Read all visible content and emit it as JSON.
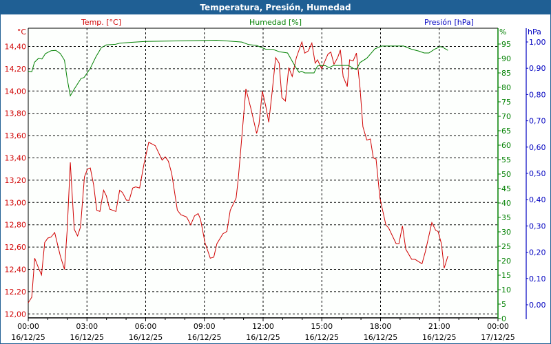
{
  "window": {
    "title": "Temperatura, Presión, Humedad"
  },
  "chart_data": {
    "type": "line",
    "title": "Temperatura, Presión, Humedad",
    "x_unit": "hours since 16/12/25 00:00",
    "xlim": [
      0,
      24
    ],
    "x_ticks": [
      {
        "time": "00:00",
        "date": "16/12/25"
      },
      {
        "time": "03:00",
        "date": "16/12/25"
      },
      {
        "time": "06:00",
        "date": "16/12/25"
      },
      {
        "time": "09:00",
        "date": "16/12/25"
      },
      {
        "time": "12:00",
        "date": "16/12/25"
      },
      {
        "time": "15:00",
        "date": "16/12/25"
      },
      {
        "time": "18:00",
        "date": "16/12/25"
      },
      {
        "time": "21:00",
        "date": "16/12/25"
      },
      {
        "time": "00:00",
        "date": "17/12/25"
      }
    ],
    "grid": true,
    "axes": {
      "temp": {
        "legend": "Temp. [°C]",
        "unit": "°C",
        "range": [
          12.0,
          14.4
        ],
        "ticks": [
          "12,00",
          "12,20",
          "12,40",
          "12,60",
          "12,80",
          "13,00",
          "13,20",
          "13,40",
          "13,60",
          "13,80",
          "14,00",
          "14,20",
          "14,40"
        ],
        "color": "#d00000",
        "side": "left"
      },
      "hum": {
        "legend": "Humedad [%]",
        "unit": "%",
        "range": [
          0,
          95
        ],
        "ticks": [
          "0",
          "5",
          "10",
          "15",
          "20",
          "25",
          "30",
          "35",
          "40",
          "45",
          "50",
          "55",
          "60",
          "65",
          "70",
          "75",
          "80",
          "85",
          "90",
          "95"
        ],
        "color": "#008000",
        "side": "right"
      },
      "pres": {
        "legend": "Presión [hPa]",
        "unit": "hPa",
        "range": [
          0,
          1
        ],
        "ticks": [
          "0,00",
          "0,10",
          "0,20",
          "0,30",
          "0,40",
          "0,50",
          "0,60",
          "0,70",
          "0,80",
          "0,90",
          "1,00"
        ],
        "color": "#0000c0",
        "side": "right"
      }
    },
    "series": [
      {
        "name": "Temp. [°C]",
        "axis": "temp",
        "color": "#d00000",
        "x": [
          0,
          0.18,
          0.33,
          0.53,
          0.68,
          0.84,
          1.0,
          1.17,
          1.35,
          1.64,
          1.85,
          1.99,
          2.15,
          2.25,
          2.35,
          2.52,
          2.67,
          2.87,
          3.03,
          3.17,
          3.34,
          3.5,
          3.66,
          3.85,
          3.99,
          4.16,
          4.48,
          4.67,
          4.81,
          5.02,
          5.16,
          5.34,
          5.49,
          5.69,
          5.92,
          6.16,
          6.49,
          6.84,
          7.0,
          7.16,
          7.33,
          7.62,
          7.8,
          8.09,
          8.3,
          8.5,
          8.68,
          8.8,
          9.03,
          9.3,
          9.48,
          9.64,
          9.95,
          10.15,
          10.32,
          10.62,
          10.73,
          10.91,
          11.03,
          11.12,
          11.38,
          11.67,
          11.79,
          11.96,
          12.14,
          12.29,
          12.46,
          12.64,
          12.82,
          12.96,
          13.14,
          13.31,
          13.49,
          13.7,
          13.98,
          14.13,
          14.31,
          14.49,
          14.66,
          14.78,
          14.99,
          15.31,
          15.46,
          15.62,
          15.81,
          15.95,
          16.09,
          16.3,
          16.42,
          16.6,
          16.77,
          16.95,
          17.1,
          17.3,
          17.48,
          17.63,
          17.77,
          17.97,
          18.27,
          18.42,
          18.8,
          18.94,
          19.12,
          19.29,
          19.59,
          19.76,
          20.12,
          20.29,
          20.62,
          20.82,
          20.94,
          21.11,
          21.25,
          21.44
        ],
        "y": [
          12.1,
          12.15,
          12.5,
          12.41,
          12.35,
          12.64,
          12.68,
          12.69,
          12.73,
          12.52,
          12.4,
          12.75,
          13.36,
          13.06,
          12.76,
          12.7,
          12.78,
          13.23,
          13.3,
          13.31,
          13.16,
          12.93,
          12.92,
          13.11,
          13.06,
          12.94,
          12.92,
          13.11,
          13.09,
          13.02,
          13.02,
          13.13,
          13.14,
          13.13,
          13.35,
          13.54,
          13.51,
          13.38,
          13.41,
          13.37,
          13.26,
          12.93,
          12.89,
          12.87,
          12.8,
          12.88,
          12.9,
          12.85,
          12.64,
          12.5,
          12.51,
          12.63,
          12.72,
          12.74,
          12.93,
          13.04,
          13.21,
          13.58,
          13.83,
          14.02,
          13.84,
          13.62,
          13.7,
          14.0,
          13.86,
          13.72,
          13.99,
          14.3,
          14.25,
          13.94,
          13.91,
          14.21,
          14.13,
          14.3,
          14.44,
          14.34,
          14.36,
          14.43,
          14.25,
          14.28,
          14.2,
          14.33,
          14.35,
          14.24,
          14.3,
          14.37,
          14.13,
          14.04,
          14.28,
          14.27,
          14.34,
          14.03,
          13.68,
          13.56,
          13.57,
          13.4,
          13.39,
          13.04,
          12.8,
          12.77,
          12.63,
          12.63,
          12.79,
          12.58,
          12.49,
          12.49,
          12.45,
          12.56,
          12.82,
          12.75,
          12.74,
          12.63,
          12.41,
          12.52
        ]
      },
      {
        "name": "Humedad [%]",
        "axis": "hum",
        "color": "#008000",
        "x": [
          0,
          0.18,
          0.32,
          0.53,
          0.7,
          0.88,
          1.17,
          1.41,
          1.64,
          1.85,
          1.99,
          2.15,
          2.35,
          2.7,
          2.85,
          3.17,
          3.46,
          3.73,
          3.99,
          4.46,
          4.69,
          5.28,
          5.98,
          7.74,
          9.62,
          10.09,
          10.91,
          11.26,
          11.67,
          12.14,
          12.49,
          12.84,
          13.25,
          13.66,
          13.84,
          13.96,
          14.13,
          14.6,
          14.78,
          14.96,
          15.19,
          15.37,
          15.6,
          16.36,
          16.6,
          16.77,
          16.95,
          17.3,
          17.71,
          18.06,
          19.18,
          19.59,
          19.94,
          20.23,
          20.47,
          20.76,
          21.05,
          21.17,
          21.44
        ],
        "y": [
          85.6,
          85.4,
          88.7,
          90.1,
          89.8,
          91.7,
          92.7,
          92.8,
          91.7,
          89.4,
          83.0,
          77.1,
          79.4,
          83.1,
          83.4,
          86.6,
          90.6,
          93.7,
          94.7,
          94.9,
          95.3,
          95.6,
          95.9,
          96.1,
          96.3,
          96.1,
          95.7,
          94.8,
          94.5,
          93.2,
          93.2,
          92.3,
          91.9,
          87.0,
          85.2,
          85.6,
          85.0,
          85.0,
          87.4,
          87.6,
          87.5,
          86.8,
          87.6,
          87.6,
          86.6,
          86.2,
          88.6,
          90.1,
          93.3,
          94.3,
          94.3,
          93.2,
          92.6,
          91.9,
          91.9,
          93.2,
          94.1,
          93.9,
          92.8
        ]
      }
    ]
  }
}
